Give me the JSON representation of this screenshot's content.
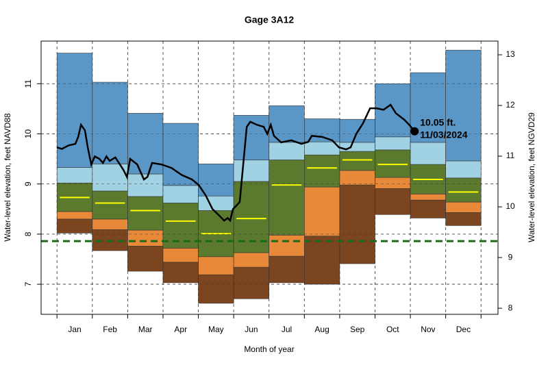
{
  "chart_data": {
    "type": "area",
    "title": "Gage 3A12",
    "x_label": "Month of year",
    "y_label": "Water-level elevation, feet NAVD88",
    "y2_label": "Water-level elevation, feet NGVD29",
    "categories": [
      "Jan",
      "Feb",
      "Mar",
      "Apr",
      "May",
      "Jun",
      "Jul",
      "Aug",
      "Sep",
      "Oct",
      "Nov",
      "Dec"
    ],
    "xlim": [
      -0.45,
      12.48
    ],
    "ylim": [
      6.4,
      11.85
    ],
    "yticks": [
      7,
      8,
      9,
      10,
      11
    ],
    "y2lim": [
      7.88,
      13.27
    ],
    "y2ticks": [
      8,
      9,
      10,
      11,
      12,
      13
    ],
    "grid": true,
    "levels": [
      {
        "values": [
          8.02,
          7.67,
          7.26,
          7.03,
          6.62,
          6.71,
          7.03,
          7.0,
          7.41,
          8.39,
          8.32,
          8.17
        ]
      },
      {
        "values": [
          8.3,
          8.09,
          7.76,
          7.44,
          7.19,
          7.34,
          7.56,
          7.96,
          8.98,
          8.91,
          8.68,
          8.43
        ]
      },
      {
        "values": [
          8.45,
          8.3,
          8.08,
          7.72,
          7.55,
          7.63,
          7.98,
          8.94,
          9.27,
          9.13,
          8.8,
          8.64
        ]
      },
      {
        "values": [
          9.02,
          8.86,
          8.75,
          8.62,
          8.47,
          9.05,
          9.48,
          9.58,
          9.65,
          9.68,
          9.39,
          9.12
        ]
      },
      {
        "values": [
          9.33,
          9.4,
          9.2,
          8.97,
          8.76,
          9.48,
          9.83,
          9.84,
          9.83,
          9.94,
          9.83,
          9.46
        ]
      },
      {
        "values": [
          11.61,
          11.03,
          10.41,
          10.21,
          9.4,
          10.37,
          10.56,
          10.3,
          10.29,
          11.0,
          11.22,
          11.67
        ]
      }
    ],
    "band_colors": [
      "#7b4520",
      "#e8893a",
      "#5b7a2e",
      "#a0d2e4",
      "#5a96c6"
    ],
    "median": {
      "color": "#ffff00",
      "values": [
        8.73,
        8.62,
        8.47,
        8.26,
        8.01,
        8.31,
        8.98,
        9.32,
        9.48,
        9.39,
        9.09,
        8.84
      ]
    },
    "reference_line": {
      "value": 7.86,
      "color": "#1a6a1a"
    },
    "daily": {
      "color": "#000000",
      "x": [
        0,
        0.14,
        0.33,
        0.52,
        0.6,
        0.68,
        0.79,
        0.87,
        0.97,
        1.07,
        1.2,
        1.3,
        1.4,
        1.49,
        1.65,
        1.78,
        1.88,
        1.98,
        2.07,
        2.27,
        2.46,
        2.56,
        2.69,
        2.95,
        3.24,
        3.53,
        3.82,
        4.01,
        4.21,
        4.4,
        4.59,
        4.73,
        4.83,
        4.9,
        4.98,
        5.08,
        5.17,
        5.27,
        5.37,
        5.47,
        5.66,
        5.85,
        5.95,
        6.05,
        6.14,
        6.34,
        6.63,
        6.92,
        7.11,
        7.21,
        7.5,
        7.79,
        7.98,
        8.18,
        8.31,
        8.47,
        8.66,
        8.86,
        9.05,
        9.24,
        9.44,
        9.59,
        9.83,
        9.98,
        10.12
      ],
      "values": [
        9.73,
        9.7,
        9.77,
        9.8,
        9.94,
        10.18,
        10.07,
        9.73,
        9.39,
        9.55,
        9.5,
        9.42,
        9.55,
        9.46,
        9.53,
        9.39,
        9.28,
        9.14,
        9.5,
        9.39,
        9.09,
        9.14,
        9.42,
        9.39,
        9.32,
        9.18,
        9.09,
        8.98,
        8.77,
        8.5,
        8.37,
        8.27,
        8.32,
        8.27,
        8.5,
        8.57,
        8.64,
        9.39,
        10.14,
        10.24,
        10.18,
        10.14,
        10.0,
        10.18,
        9.96,
        9.83,
        9.87,
        9.8,
        9.84,
        9.96,
        9.94,
        9.87,
        9.73,
        9.69,
        9.73,
        10.0,
        10.21,
        10.51,
        10.51,
        10.48,
        10.58,
        10.41,
        10.28,
        10.17,
        10.05
      ]
    },
    "annotation": [
      "10.05 ft.",
      "11/03/2024"
    ]
  }
}
